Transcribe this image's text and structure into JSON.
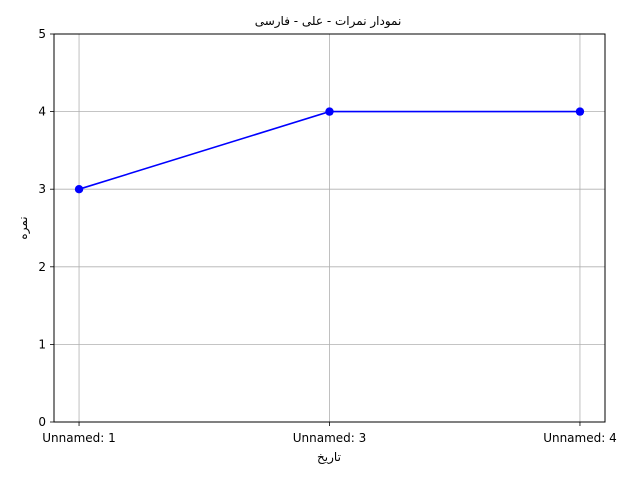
{
  "chart_data": {
    "type": "line",
    "title": "نمودار نمرات - علی - فارسی",
    "xlabel": "تاریخ",
    "ylabel": "نمره",
    "categories": [
      "Unnamed: 1",
      "Unnamed: 3",
      "Unnamed: 4"
    ],
    "series": [
      {
        "values": [
          3,
          4,
          4
        ],
        "color": "#0000ff",
        "marker": "circle"
      }
    ],
    "ylim": [
      0,
      5
    ],
    "yticks": [
      0,
      1,
      2,
      3,
      4,
      5
    ],
    "grid": true,
    "legend": "none"
  }
}
